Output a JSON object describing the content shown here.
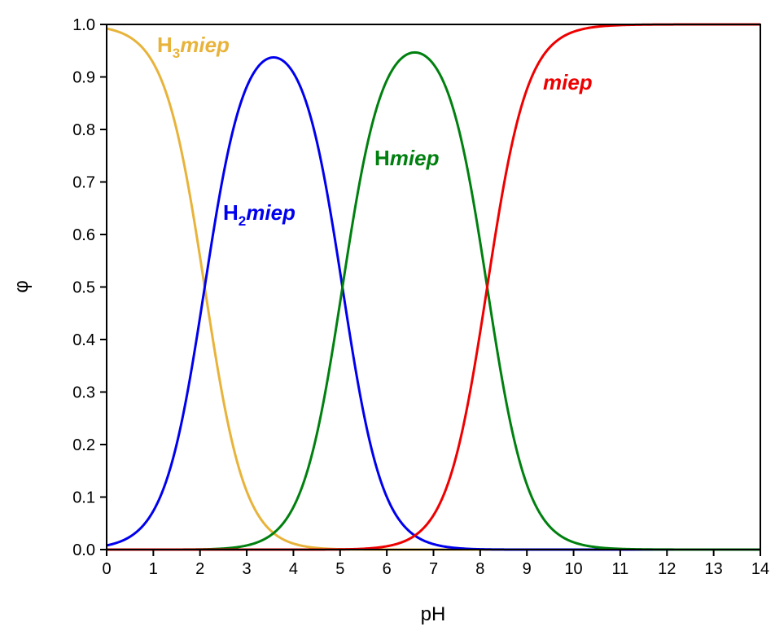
{
  "chart_data": {
    "type": "line",
    "xlabel": "pH",
    "ylabel": "φ",
    "xlim": [
      0,
      14
    ],
    "ylim": [
      0,
      1
    ],
    "x_ticks": [
      0,
      1,
      2,
      3,
      4,
      5,
      6,
      7,
      8,
      9,
      10,
      11,
      12,
      13,
      14
    ],
    "y_ticks": [
      0.0,
      0.1,
      0.2,
      0.3,
      0.4,
      0.5,
      0.6,
      0.7,
      0.8,
      0.9,
      1.0
    ],
    "x_tick_labels": [
      "0",
      "1",
      "2",
      "3",
      "4",
      "5",
      "6",
      "7",
      "8",
      "9",
      "10",
      "11",
      "12",
      "13",
      "14"
    ],
    "y_tick_labels": [
      "0.0",
      "0.1",
      "0.2",
      "0.3",
      "0.4",
      "0.5",
      "0.6",
      "0.7",
      "0.8",
      "0.9",
      "1.0"
    ],
    "grid": false,
    "pKa": [
      2.1,
      5.05,
      8.15
    ],
    "x": [
      0,
      0.5,
      1,
      1.5,
      2,
      2.5,
      3,
      3.5,
      4,
      4.5,
      5,
      5.5,
      6,
      6.5,
      7,
      7.5,
      8,
      8.5,
      9,
      9.5,
      10,
      10.5,
      11,
      11.5,
      12,
      12.5,
      13,
      13.5,
      14
    ],
    "series": [
      {
        "name_main": "H",
        "name_sub": "3",
        "name_ital": "miep",
        "color": "#e8b33a",
        "values": [
          0.992,
          0.975,
          0.925,
          0.795,
          0.557,
          0.285,
          0.112,
          0.038,
          0.012,
          0.004,
          0.001,
          0.0003,
          0.0001,
          0,
          0,
          0,
          0,
          0,
          0,
          0,
          0,
          0,
          0,
          0,
          0,
          0,
          0,
          0,
          0
        ]
      },
      {
        "name_main": "H",
        "name_sub": "2",
        "name_ital": "miep",
        "color": "#0000ee",
        "values": [
          0.008,
          0.025,
          0.074,
          0.202,
          0.44,
          0.709,
          0.876,
          0.936,
          0.931,
          0.852,
          0.532,
          0.262,
          0.101,
          0.034,
          0.011,
          0.003,
          0.001,
          0.0003,
          0.0001,
          0,
          0,
          0,
          0,
          0,
          0,
          0,
          0,
          0,
          0
        ]
      },
      {
        "name_main": "H",
        "name_sub": "",
        "name_ital": "miep",
        "color": "#00800f",
        "values": [
          0,
          0,
          0,
          0,
          0.0003,
          0.001,
          0.01,
          0.032,
          0.094,
          0.248,
          0.465,
          0.732,
          0.893,
          0.944,
          0.939,
          0.857,
          0.567,
          0.292,
          0.114,
          0.039,
          0.013,
          0.004,
          0.001,
          0.0004,
          0.0001,
          0,
          0,
          0,
          0
        ]
      },
      {
        "name_main": "",
        "name_sub": "",
        "name_ital": "miep",
        "color": "#ee0000",
        "values": [
          0,
          0,
          0,
          0,
          0,
          0,
          0,
          0,
          0,
          0,
          0.0005,
          0.002,
          0.006,
          0.022,
          0.05,
          0.14,
          0.432,
          0.707,
          0.885,
          0.961,
          0.987,
          0.996,
          0.999,
          1.0,
          1.0,
          1.0,
          1.0,
          1.0,
          1.0
        ]
      }
    ]
  }
}
